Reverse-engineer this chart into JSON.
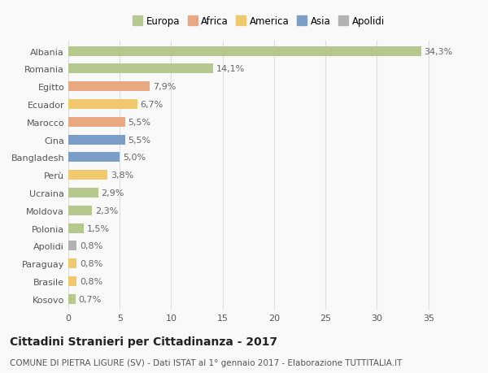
{
  "categories": [
    "Albania",
    "Romania",
    "Egitto",
    "Ecuador",
    "Marocco",
    "Cina",
    "Bangladesh",
    "Perù",
    "Ucraina",
    "Moldova",
    "Polonia",
    "Apolidi",
    "Paraguay",
    "Brasile",
    "Kosovo"
  ],
  "values": [
    34.3,
    14.1,
    7.9,
    6.7,
    5.5,
    5.5,
    5.0,
    3.8,
    2.9,
    2.3,
    1.5,
    0.8,
    0.8,
    0.8,
    0.7
  ],
  "labels": [
    "34,3%",
    "14,1%",
    "7,9%",
    "6,7%",
    "5,5%",
    "5,5%",
    "5,0%",
    "3,8%",
    "2,9%",
    "2,3%",
    "1,5%",
    "0,8%",
    "0,8%",
    "0,8%",
    "0,7%"
  ],
  "colors": [
    "#b5c98e",
    "#b5c98e",
    "#e8a882",
    "#f0c96e",
    "#e8a882",
    "#7b9ec9",
    "#7b9ec9",
    "#f0c96e",
    "#b5c98e",
    "#b5c98e",
    "#b5c98e",
    "#b2b2b2",
    "#f0c96e",
    "#f0c96e",
    "#b5c98e"
  ],
  "legend_labels": [
    "Europa",
    "Africa",
    "America",
    "Asia",
    "Apolidi"
  ],
  "legend_colors": [
    "#b5c98e",
    "#e8a882",
    "#f0c96e",
    "#7b9ec9",
    "#b2b2b2"
  ],
  "title": "Cittadini Stranieri per Cittadinanza - 2017",
  "subtitle": "COMUNE DI PIETRA LIGURE (SV) - Dati ISTAT al 1° gennaio 2017 - Elaborazione TUTTITALIA.IT",
  "xlim": [
    0,
    37
  ],
  "xticks": [
    0,
    5,
    10,
    15,
    20,
    25,
    30,
    35
  ],
  "background_color": "#f9f9f9",
  "grid_color": "#dddddd",
  "bar_height": 0.55,
  "label_fontsize": 8,
  "tick_fontsize": 8,
  "title_fontsize": 10,
  "subtitle_fontsize": 7.5
}
